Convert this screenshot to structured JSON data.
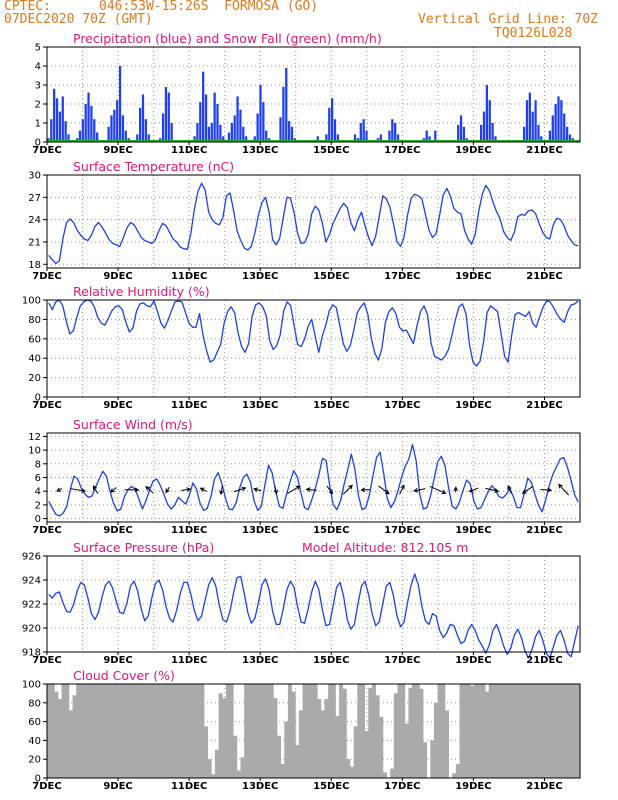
{
  "header": {
    "source": "CPTEC:",
    "location": "046:53W-15:26S  FORMOSA (GO)",
    "run": "07DEC2020 70Z (GMT)",
    "grid_note": "Vertical Grid Line: 70Z",
    "model_code": "TQ0126L028"
  },
  "colors": {
    "header": "#e07a1c",
    "titles": "#e8147a",
    "series": "#1f3ff0",
    "snow": "#22aa22",
    "cloud": "#aaaaaa"
  },
  "x_axis": {
    "labels": [
      "7DEC",
      "9DEC",
      "11DEC",
      "13DEC",
      "15DEC",
      "17DEC",
      "19DEC",
      "21DEC"
    ],
    "start_day": 7,
    "end_day": 22
  },
  "chart_data": [
    {
      "type": "bar",
      "title": "Precipitation (blue) and Snow Fall (green) (mm/h)",
      "ylim": [
        0,
        5
      ],
      "yticks": [
        "0",
        "1",
        "2",
        "3",
        "4",
        "5"
      ],
      "series": [
        {
          "name": "Precipitation",
          "values": [
            0.2,
            1.2,
            2.8,
            2.3,
            1.6,
            2.4,
            1.1,
            0.4,
            0,
            0,
            0.2,
            0.6,
            1.2,
            2.0,
            2.6,
            1.9,
            1.2,
            0.5,
            0,
            0,
            0,
            0.8,
            1.4,
            1.7,
            2.2,
            4.0,
            1.4,
            0.6,
            0.2,
            0,
            0,
            0.4,
            1.8,
            2.5,
            1.2,
            0.4,
            0,
            0,
            0,
            0.2,
            1.5,
            2.9,
            2.6,
            1.0,
            0.1,
            0,
            0,
            0,
            0,
            0,
            0,
            0.3,
            1.0,
            2.1,
            3.7,
            2.5,
            0.8,
            1.0,
            2.6,
            2.0,
            0.9,
            0.3,
            0,
            0.5,
            1.0,
            1.4,
            2.4,
            1.7,
            0.8,
            0.3,
            0,
            0,
            0.3,
            1.5,
            3.0,
            2.1,
            0.6,
            0.2,
            0,
            0,
            0,
            1.3,
            2.9,
            3.9,
            1.1,
            0.8,
            0.2,
            0,
            0,
            0,
            0,
            0,
            0,
            0,
            0.3,
            0,
            0,
            0.4,
            1.8,
            2.3,
            1.2,
            0.4,
            0,
            0,
            0,
            0,
            0,
            0.4,
            0.2,
            1.0,
            1.2,
            0.6,
            0,
            0,
            0,
            0.2,
            0.4,
            0,
            0,
            0.6,
            1.2,
            1.0,
            0.4,
            0,
            0,
            0,
            0,
            0,
            0,
            0,
            0,
            0.2,
            0.6,
            0.3,
            0,
            0.6,
            0,
            0,
            0,
            0,
            0,
            0,
            0,
            0.9,
            1.4,
            0.8,
            0.2,
            0,
            0,
            0,
            0.1,
            0.9,
            1.6,
            3.0,
            2.2,
            1.0,
            0.3,
            0,
            0,
            0,
            0,
            0,
            0,
            0,
            0,
            0,
            0.8,
            2.2,
            2.6,
            1.6,
            2.2,
            0.9,
            0.3,
            0,
            0,
            0.6,
            1.4,
            2.0,
            2.4,
            2.2,
            1.5,
            0.8,
            0.4,
            0.2,
            0,
            0
          ]
        },
        {
          "name": "Snow Fall",
          "values": [
            0
          ]
        }
      ]
    },
    {
      "type": "line",
      "title": "Surface Temperature (nC)",
      "ylim": [
        17.5,
        30
      ],
      "yticks": [
        "18",
        "21",
        "24",
        "27",
        "30"
      ],
      "values": [
        19.2,
        18.6,
        18.1,
        18.5,
        21.5,
        23.6,
        24.1,
        23.6,
        22.6,
        21.9,
        21.4,
        21.2,
        21.9,
        23.1,
        23.6,
        23.0,
        22.2,
        21.3,
        20.8,
        20.6,
        20.4,
        21.6,
        22.9,
        23.6,
        23.3,
        22.5,
        21.6,
        21.2,
        21.0,
        20.8,
        21.3,
        22.5,
        23.5,
        23.2,
        22.3,
        21.4,
        21.0,
        20.3,
        20.1,
        20.0,
        22.2,
        25.5,
        27.8,
        28.9,
        28.0,
        25.0,
        24.0,
        23.5,
        23.3,
        24.3,
        27.2,
        27.6,
        25.3,
        22.5,
        21.2,
        20.2,
        19.9,
        20.4,
        22.2,
        24.6,
        26.3,
        27.0,
        25.0,
        21.3,
        20.6,
        21.5,
        24.3,
        27.0,
        26.9,
        25.0,
        22.2,
        20.8,
        20.9,
        22.0,
        24.8,
        25.8,
        25.3,
        23.5,
        21.0,
        22.0,
        23.5,
        24.5,
        25.5,
        26.2,
        25.6,
        23.6,
        22.5,
        24.0,
        25.0,
        23.2,
        21.6,
        20.5,
        21.8,
        24.4,
        27.2,
        26.8,
        25.7,
        23.5,
        21.0,
        20.4,
        21.7,
        24.7,
        26.9,
        27.4,
        27.2,
        26.8,
        24.7,
        22.6,
        21.6,
        22.1,
        24.6,
        27.3,
        28.2,
        27.2,
        25.5,
        25.0,
        24.8,
        22.6,
        21.4,
        20.7,
        22.0,
        25.1,
        27.4,
        28.6,
        27.9,
        26.4,
        25.1,
        24.1,
        22.4,
        21.6,
        21.2,
        22.3,
        24.4,
        24.7,
        24.6,
        25.2,
        25.3,
        24.8,
        23.5,
        22.3,
        21.6,
        21.4,
        23.3,
        24.2,
        24.0,
        23.2,
        21.9,
        21.2,
        20.6,
        20.5
      ]
    },
    {
      "type": "line",
      "title": "Relative Humidity (%)",
      "ylim": [
        0,
        100
      ],
      "yticks": [
        "0",
        "20",
        "40",
        "60",
        "80",
        "100"
      ],
      "values": [
        97,
        90,
        98,
        100,
        94,
        78,
        65,
        68,
        82,
        94,
        98,
        100,
        99,
        93,
        82,
        76,
        74,
        81,
        89,
        93,
        94,
        90,
        77,
        67,
        71,
        88,
        96,
        97,
        94,
        93,
        99,
        88,
        76,
        71,
        79,
        89,
        98,
        99,
        98,
        87,
        76,
        72,
        72,
        86,
        64,
        48,
        36,
        38,
        46,
        54,
        76,
        88,
        93,
        87,
        66,
        52,
        46,
        55,
        83,
        95,
        97,
        93,
        84,
        58,
        49,
        53,
        64,
        89,
        98,
        94,
        73,
        54,
        52,
        60,
        73,
        80,
        62,
        46,
        63,
        74,
        89,
        95,
        92,
        74,
        55,
        47,
        53,
        69,
        87,
        93,
        97,
        85,
        60,
        45,
        38,
        50,
        77,
        88,
        92,
        86,
        72,
        68,
        69,
        62,
        55,
        73,
        88,
        94,
        85,
        56,
        42,
        40,
        38,
        42,
        49,
        64,
        80,
        93,
        96,
        86,
        54,
        36,
        32,
        37,
        57,
        87,
        94,
        91,
        88,
        65,
        42,
        36,
        63,
        85,
        87,
        85,
        83,
        88,
        76,
        72,
        83,
        93,
        99,
        98,
        92,
        85,
        80,
        77,
        88,
        95,
        96,
        99
      ]
    },
    {
      "type": "line",
      "title": "Surface Wind (m/s)",
      "ylim": [
        -0.5,
        12.5
      ],
      "yticks": [
        "0",
        "2",
        "4",
        "6",
        "8",
        "10",
        "12"
      ],
      "values": [
        2.5,
        1.5,
        0.6,
        0.4,
        0.8,
        1.8,
        4.3,
        6.2,
        5.8,
        4.5,
        3.6,
        3.1,
        3.3,
        4.6,
        5.8,
        6.9,
        6.2,
        4.0,
        2.2,
        1.1,
        1.4,
        3.2,
        4.2,
        4.7,
        4.3,
        2.9,
        1.4,
        2.6,
        4.2,
        5.5,
        5.8,
        4.8,
        3.5,
        2.1,
        1.4,
        2.0,
        3.1,
        2.6,
        2.1,
        3.4,
        5.2,
        4.3,
        2.2,
        1.2,
        1.5,
        3.2,
        5.8,
        6.7,
        5.2,
        3.1,
        1.4,
        1.3,
        2.3,
        4.5,
        6.0,
        6.5,
        5.3,
        2.6,
        1.2,
        1.8,
        4.9,
        7.8,
        6.7,
        4.0,
        1.8,
        1.5,
        3.5,
        5.4,
        7.0,
        6.1,
        3.8,
        1.6,
        1.3,
        2.7,
        4.4,
        6.4,
        8.8,
        8.5,
        4.8,
        2.0,
        1.3,
        2.6,
        5.0,
        7.1,
        9.4,
        7.2,
        3.3,
        1.3,
        1.6,
        3.4,
        6.2,
        8.9,
        9.7,
        6.6,
        2.9,
        1.6,
        2.5,
        4.1,
        6.1,
        7.7,
        8.7,
        10.8,
        8.5,
        3.6,
        1.4,
        1.6,
        3.3,
        5.8,
        8.3,
        9.1,
        7.8,
        4.5,
        1.8,
        1.4,
        2.4,
        4.1,
        5.6,
        5.1,
        2.6,
        1.4,
        1.6,
        2.8,
        3.9,
        4.8,
        4.2,
        3.2,
        3.0,
        3.5,
        4.4,
        3.2,
        1.6,
        1.6,
        3.7,
        5.9,
        5.3,
        3.5,
        1.9,
        1.0,
        2.8,
        4.9,
        6.5,
        7.6,
        8.7,
        8.9,
        7.5,
        5.6,
        3.5,
        2.4
      ]
    },
    {
      "type": "line",
      "title": "Surface Pressure (hPa)",
      "annotation": "Model Altitude: 812.105 m",
      "ylim": [
        918,
        926
      ],
      "yticks": [
        "918",
        "920",
        "922",
        "924",
        "926"
      ],
      "values": [
        922.8,
        922.5,
        922.9,
        923.0,
        922.1,
        921.4,
        921.3,
        922.0,
        923.1,
        923.8,
        923.6,
        922.5,
        921.2,
        920.7,
        921.3,
        922.6,
        923.6,
        923.9,
        923.3,
        922.2,
        921.3,
        921.2,
        922.1,
        923.5,
        923.9,
        923.1,
        921.6,
        920.6,
        921.0,
        922.5,
        923.7,
        924.0,
        923.2,
        921.8,
        920.8,
        920.5,
        921.5,
        922.9,
        923.8,
        923.8,
        922.8,
        921.4,
        920.6,
        921.0,
        922.3,
        923.6,
        924.2,
        923.5,
        921.9,
        920.7,
        920.5,
        921.4,
        922.9,
        924.2,
        924.3,
        922.9,
        921.3,
        920.4,
        920.8,
        922.1,
        923.6,
        924.1,
        923.2,
        921.4,
        920.3,
        920.3,
        921.6,
        923.2,
        923.9,
        923.4,
        921.8,
        920.5,
        920.4,
        921.6,
        923.0,
        923.9,
        923.2,
        921.5,
        920.2,
        920.3,
        921.8,
        923.4,
        923.8,
        922.6,
        920.7,
        919.9,
        920.3,
        922.0,
        923.5,
        923.9,
        922.8,
        921.2,
        920.2,
        920.5,
        922.0,
        923.5,
        923.8,
        922.7,
        921.0,
        920.1,
        920.5,
        922.2,
        923.6,
        924.5,
        923.6,
        921.8,
        920.6,
        920.3,
        921.2,
        921.0,
        919.8,
        919.2,
        919.6,
        920.3,
        920.2,
        919.4,
        918.7,
        918.9,
        919.8,
        920.3,
        919.8,
        919.0,
        918.5,
        917.9,
        918.6,
        919.8,
        920.3,
        919.5,
        918.5,
        917.8,
        918.3,
        919.4,
        919.9,
        919.2,
        918.1,
        917.5,
        918.2,
        919.3,
        919.8,
        919.0,
        917.9,
        917.5,
        918.4,
        919.4,
        919.8,
        919.0,
        917.9,
        917.6,
        918.9,
        920.2
      ]
    },
    {
      "type": "area",
      "title": "Cloud Cover (%)",
      "ylim": [
        0,
        100
      ],
      "yticks": [
        "0",
        "20",
        "40",
        "60",
        "80",
        "100"
      ],
      "values": [
        100,
        100,
        92,
        84,
        100,
        100,
        72,
        88,
        100,
        100,
        100,
        100,
        100,
        100,
        100,
        100,
        100,
        100,
        100,
        100,
        100,
        100,
        100,
        100,
        100,
        100,
        100,
        100,
        100,
        100,
        100,
        100,
        100,
        100,
        100,
        100,
        100,
        100,
        100,
        100,
        100,
        100,
        100,
        55,
        20,
        4,
        30,
        90,
        85,
        100,
        100,
        45,
        8,
        22,
        100,
        100,
        100,
        100,
        100,
        100,
        100,
        100,
        85,
        45,
        15,
        60,
        100,
        92,
        35,
        72,
        100,
        100,
        100,
        100,
        84,
        72,
        84,
        100,
        100,
        66,
        100,
        95,
        20,
        12,
        55,
        100,
        100,
        50,
        96,
        100,
        88,
        65,
        6,
        0,
        10,
        90,
        100,
        100,
        58,
        96,
        100,
        100,
        95,
        38,
        0,
        40,
        80,
        100,
        100,
        72,
        0,
        5,
        15,
        100,
        100,
        100,
        98,
        100,
        100,
        100,
        92,
        100,
        100,
        100,
        100,
        100,
        100,
        100,
        100,
        100,
        100,
        100,
        100,
        100,
        100,
        100,
        100,
        100,
        100,
        100,
        100,
        100,
        100,
        100,
        100,
        100
      ]
    }
  ]
}
